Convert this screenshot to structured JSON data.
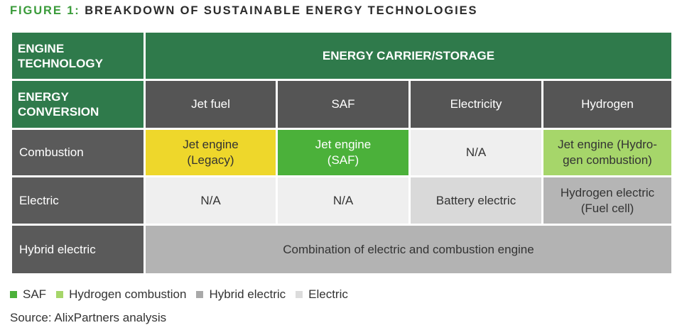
{
  "figure": {
    "label": "FIGURE 1:",
    "title": "BREAKDOWN OF SUSTAINABLE ENERGY TECHNOLOGIES"
  },
  "table": {
    "engine_technology_line1": "ENGINE",
    "engine_technology_line2": "TECHNOLOGY",
    "energy_carrier_header": "ENERGY CARRIER/STORAGE",
    "energy_conversion_line1": "ENERGY",
    "energy_conversion_line2": "CONVERSION",
    "columns": [
      "Jet fuel",
      "SAF",
      "Electricity",
      "Hydrogen"
    ],
    "rows": {
      "combustion": {
        "label": "Combustion",
        "jet_fuel_line1": "Jet engine",
        "jet_fuel_line2": "(Legacy)",
        "saf_line1": "Jet engine",
        "saf_line2": "(SAF)",
        "electricity": "N/A",
        "hydrogen_line1": "Jet engine (Hydro-",
        "hydrogen_line2": "gen combustion)"
      },
      "electric": {
        "label": "Electric",
        "jet_fuel": "N/A",
        "saf": "N/A",
        "electricity": "Battery electric",
        "hydrogen_line1": "Hydrogen electric",
        "hydrogen_line2": "(Fuel cell)"
      },
      "hybrid": {
        "label": "Hybrid electric",
        "combined": "Combination of electric and combustion engine"
      }
    }
  },
  "legend": [
    {
      "label": "SAF",
      "color": "#4bb13a"
    },
    {
      "label": "Hydrogen combustion",
      "color": "#a6d66a"
    },
    {
      "label": "Hybrid electric",
      "color": "#a9a9a9"
    },
    {
      "label": "Electric",
      "color": "#dcdcdc"
    }
  ],
  "source": "Source: AlixPartners analysis"
}
